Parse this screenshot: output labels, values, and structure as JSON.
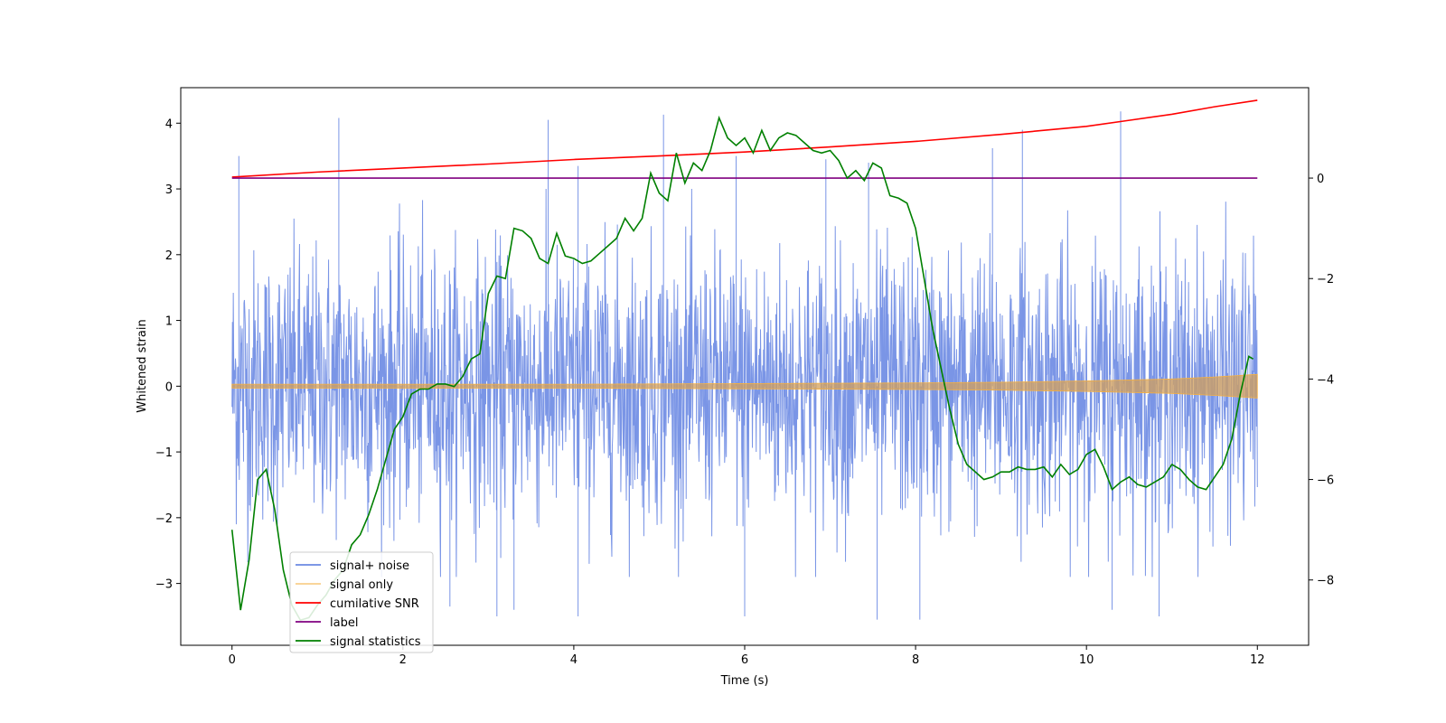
{
  "chart_data": {
    "type": "line",
    "xlabel": "Time (s)",
    "ylabel": "Whitened strain",
    "y2label": "",
    "xlim": [
      -0.6,
      12.6
    ],
    "ylim": [
      -3.94,
      4.54
    ],
    "y2lim": [
      -9.3,
      1.8
    ],
    "xticks": [
      0,
      2,
      4,
      6,
      8,
      10,
      12
    ],
    "yticks": [
      -3,
      -2,
      -1,
      0,
      1,
      2,
      3,
      4
    ],
    "y2ticks": [
      -8,
      -6,
      -4,
      -2,
      0
    ],
    "grid": false,
    "legend_position": "lower-left",
    "series": [
      {
        "name": "signal+ noise",
        "axis": "left",
        "color": "#6b8ae3",
        "kind": "noise-band",
        "x_range": [
          0,
          12
        ],
        "typical_amplitude": 1.2,
        "spikes": [
          {
            "x": 0.08,
            "y": 3.5
          },
          {
            "x": 1.25,
            "y": 4.08
          },
          {
            "x": 3.7,
            "y": 4.05
          },
          {
            "x": 5.05,
            "y": 4.13
          },
          {
            "x": 10.4,
            "y": 4.18
          },
          {
            "x": 9.25,
            "y": 3.9
          },
          {
            "x": 8.9,
            "y": 3.62
          },
          {
            "x": 4.05,
            "y": 3.35
          },
          {
            "x": 6.95,
            "y": 3.45
          },
          {
            "x": 5.9,
            "y": 3.5
          },
          {
            "x": 7.45,
            "y": 3.4
          },
          {
            "x": 3.1,
            "y": -3.5
          },
          {
            "x": 4.05,
            "y": -3.5
          },
          {
            "x": 7.55,
            "y": -3.55
          },
          {
            "x": 6.0,
            "y": -3.5
          },
          {
            "x": 8.05,
            "y": -3.55
          },
          {
            "x": 10.3,
            "y": -3.4
          },
          {
            "x": 10.85,
            "y": -3.5
          },
          {
            "x": 2.55,
            "y": -3.35
          },
          {
            "x": 3.3,
            "y": -3.4
          }
        ]
      },
      {
        "name": "signal only",
        "axis": "left",
        "color": "#f5b041",
        "kind": "chirp-envelope",
        "x": [
          0,
          2,
          4,
          6,
          8,
          9,
          10,
          11,
          11.5,
          12
        ],
        "amplitude": [
          0.03,
          0.03,
          0.03,
          0.04,
          0.05,
          0.06,
          0.08,
          0.11,
          0.14,
          0.18
        ]
      },
      {
        "name": "cumilative SNR",
        "axis": "right",
        "color": "#ff0000",
        "x": [
          0,
          1,
          2,
          3,
          4,
          5,
          6,
          7,
          8,
          9,
          10,
          10.5,
          11,
          11.5,
          12
        ],
        "y": [
          0.02,
          0.12,
          0.2,
          0.28,
          0.37,
          0.44,
          0.52,
          0.62,
          0.73,
          0.87,
          1.03,
          1.15,
          1.27,
          1.42,
          1.55
        ]
      },
      {
        "name": "label",
        "axis": "right",
        "color": "#800080",
        "x": [
          0,
          12
        ],
        "y": [
          0,
          0
        ]
      },
      {
        "name": "signal statistics",
        "axis": "right",
        "color": "#008000",
        "x": [
          0,
          0.1,
          0.2,
          0.3,
          0.4,
          0.5,
          0.6,
          0.7,
          0.8,
          0.9,
          1.0,
          1.1,
          1.2,
          1.3,
          1.4,
          1.5,
          1.6,
          1.7,
          1.8,
          1.9,
          2.0,
          2.1,
          2.2,
          2.3,
          2.4,
          2.5,
          2.6,
          2.7,
          2.8,
          2.9,
          3.0,
          3.1,
          3.2,
          3.3,
          3.4,
          3.5,
          3.6,
          3.7,
          3.8,
          3.9,
          4.0,
          4.1,
          4.2,
          4.3,
          4.4,
          4.5,
          4.6,
          4.7,
          4.8,
          4.9,
          5.0,
          5.1,
          5.2,
          5.3,
          5.4,
          5.5,
          5.6,
          5.7,
          5.8,
          5.9,
          6.0,
          6.1,
          6.2,
          6.3,
          6.4,
          6.5,
          6.6,
          6.7,
          6.8,
          6.9,
          7.0,
          7.1,
          7.2,
          7.3,
          7.4,
          7.5,
          7.6,
          7.7,
          7.8,
          7.9,
          8.0,
          8.1,
          8.2,
          8.3,
          8.4,
          8.5,
          8.6,
          8.7,
          8.8,
          8.9,
          9.0,
          9.1,
          9.2,
          9.3,
          9.4,
          9.5,
          9.6,
          9.7,
          9.8,
          9.9,
          10.0,
          10.1,
          10.2,
          10.3,
          10.4,
          10.5,
          10.6,
          10.7,
          10.8,
          10.9,
          11.0,
          11.1,
          11.2,
          11.3,
          11.4,
          11.5,
          11.6,
          11.7,
          11.8,
          11.9,
          11.95
        ],
        "y": [
          -7.0,
          -8.6,
          -7.6,
          -6.0,
          -5.8,
          -6.6,
          -7.8,
          -8.5,
          -8.8,
          -8.75,
          -8.5,
          -8.3,
          -8.0,
          -7.8,
          -7.3,
          -7.1,
          -6.7,
          -6.2,
          -5.6,
          -5.0,
          -4.75,
          -4.3,
          -4.2,
          -4.2,
          -4.1,
          -4.1,
          -4.15,
          -3.95,
          -3.6,
          -3.5,
          -2.3,
          -1.95,
          -2.0,
          -1.0,
          -1.05,
          -1.2,
          -1.6,
          -1.7,
          -1.1,
          -1.55,
          -1.6,
          -1.7,
          -1.65,
          -1.5,
          -1.35,
          -1.2,
          -0.8,
          -1.05,
          -0.8,
          0.1,
          -0.3,
          -0.45,
          0.5,
          -0.1,
          0.3,
          0.15,
          0.55,
          1.2,
          0.8,
          0.65,
          0.8,
          0.5,
          0.95,
          0.55,
          0.8,
          0.9,
          0.85,
          0.7,
          0.55,
          0.5,
          0.55,
          0.35,
          0.0,
          0.15,
          -0.05,
          0.3,
          0.2,
          -0.35,
          -0.4,
          -0.5,
          -1.0,
          -2.0,
          -3.0,
          -3.8,
          -4.6,
          -5.3,
          -5.7,
          -5.85,
          -6.0,
          -5.95,
          -5.85,
          -5.85,
          -5.75,
          -5.8,
          -5.8,
          -5.75,
          -5.95,
          -5.7,
          -5.9,
          -5.8,
          -5.5,
          -5.4,
          -5.75,
          -6.2,
          -6.05,
          -5.95,
          -6.1,
          -6.15,
          -6.05,
          -5.95,
          -5.7,
          -5.8,
          -6.0,
          -6.15,
          -6.2,
          -5.95,
          -5.7,
          -5.2,
          -4.3,
          -3.55,
          -3.6
        ]
      }
    ]
  }
}
